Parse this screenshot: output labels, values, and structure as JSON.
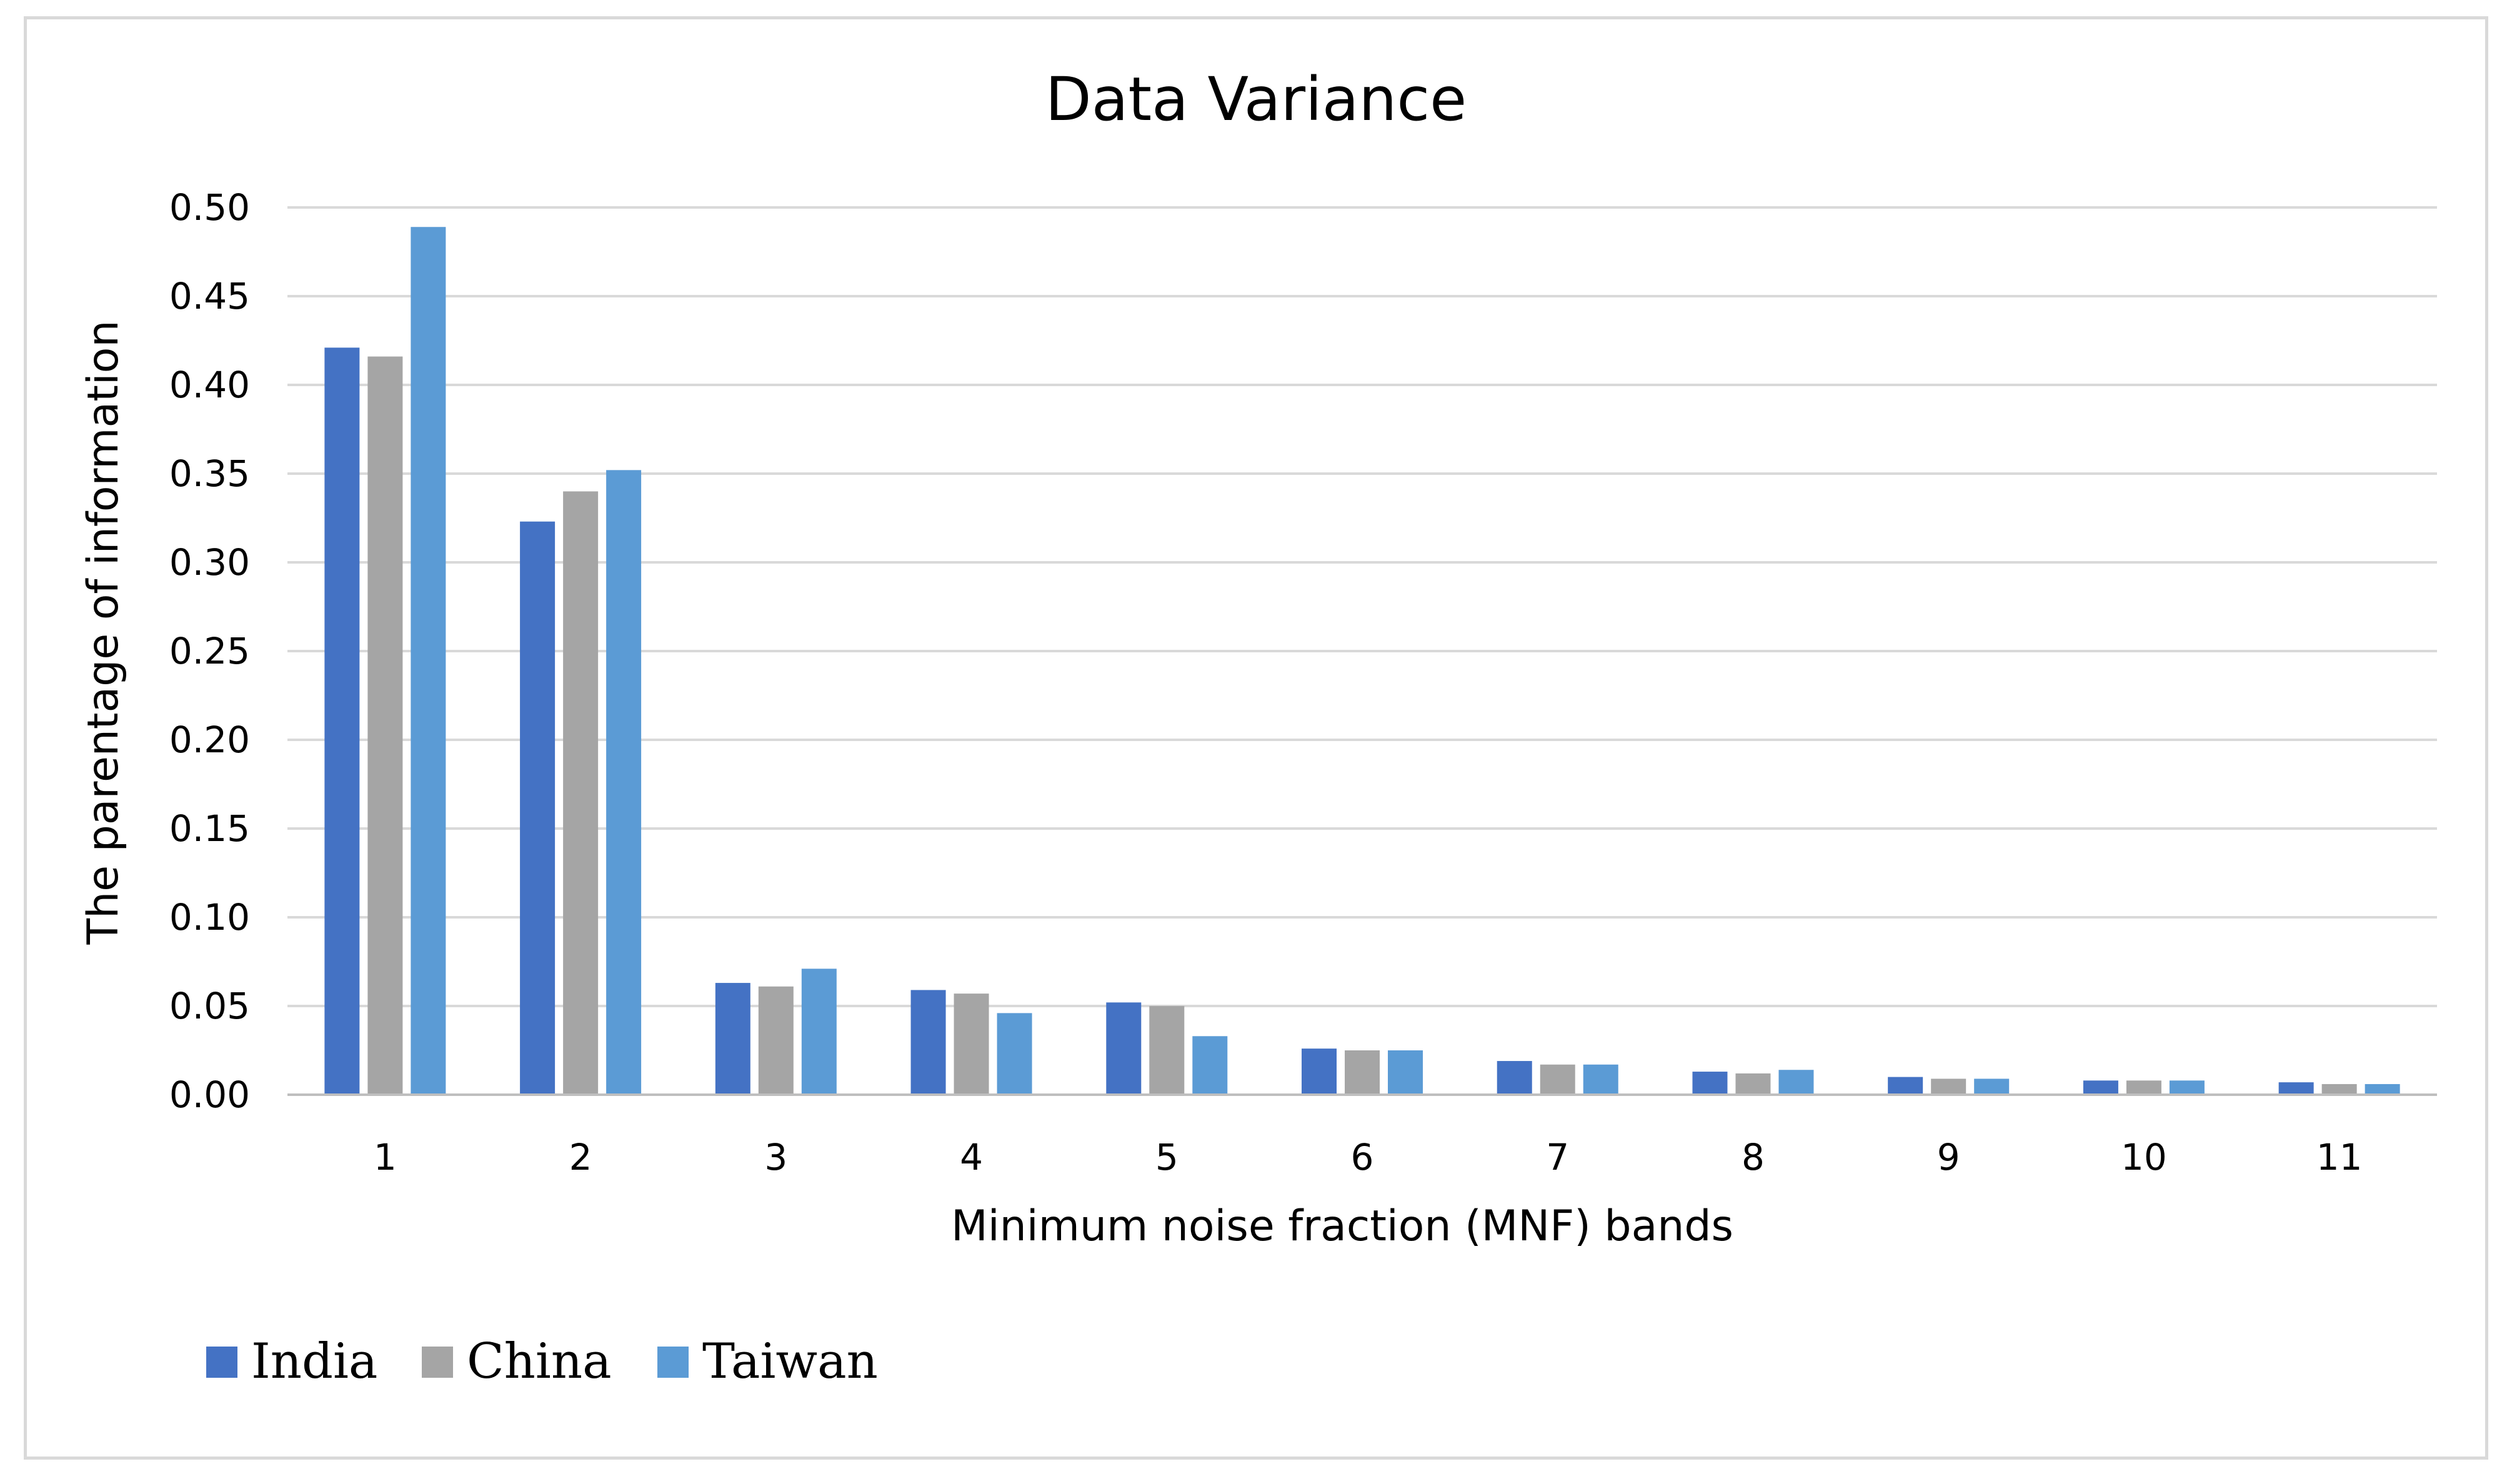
{
  "chart_data": {
    "type": "bar",
    "title": "Data Variance",
    "xlabel": "Minimum noise fraction (MNF) bands",
    "ylabel": "The parentage of information",
    "categories": [
      "1",
      "2",
      "3",
      "4",
      "5",
      "6",
      "7",
      "8",
      "9",
      "10",
      "11"
    ],
    "series": [
      {
        "name": "India",
        "color": "#4472c4",
        "values": [
          0.421,
          0.323,
          0.063,
          0.059,
          0.052,
          0.026,
          0.019,
          0.013,
          0.01,
          0.008,
          0.007
        ]
      },
      {
        "name": "China",
        "color": "#a5a5a5",
        "values": [
          0.416,
          0.34,
          0.061,
          0.057,
          0.05,
          0.025,
          0.017,
          0.012,
          0.009,
          0.008,
          0.006
        ]
      },
      {
        "name": "Taiwan",
        "color": "#5b9bd5",
        "values": [
          0.489,
          0.352,
          0.071,
          0.046,
          0.033,
          0.025,
          0.017,
          0.014,
          0.009,
          0.008,
          0.006
        ]
      }
    ],
    "ylim": [
      0,
      0.5
    ],
    "yticks": [
      "0.00",
      "0.05",
      "0.10",
      "0.15",
      "0.20",
      "0.25",
      "0.30",
      "0.35",
      "0.40",
      "0.45",
      "0.50"
    ],
    "grid": true,
    "legend": "bottom-left"
  }
}
